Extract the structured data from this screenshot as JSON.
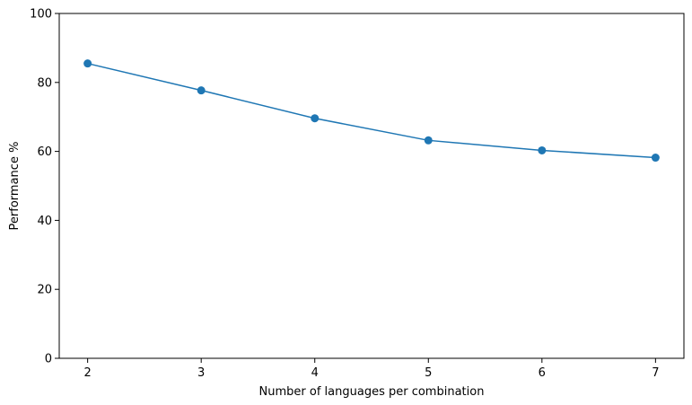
{
  "chart_data": {
    "type": "line",
    "title": "",
    "xlabel": "Number of languages per combination",
    "ylabel": "Performance %",
    "x": [
      2,
      3,
      4,
      5,
      6,
      7
    ],
    "series": [
      {
        "values": [
          85.5,
          77.7,
          69.6,
          63.2,
          60.3,
          58.2
        ],
        "color": "#1f77b4",
        "marker": "circle"
      }
    ],
    "xlim": [
      1.75,
      7.25
    ],
    "ylim": [
      0,
      100
    ],
    "xticks": [
      "2",
      "3",
      "4",
      "5",
      "6",
      "7"
    ],
    "yticks": [
      "0",
      "20",
      "40",
      "60",
      "80",
      "100"
    ],
    "grid": false,
    "legend": "none"
  }
}
